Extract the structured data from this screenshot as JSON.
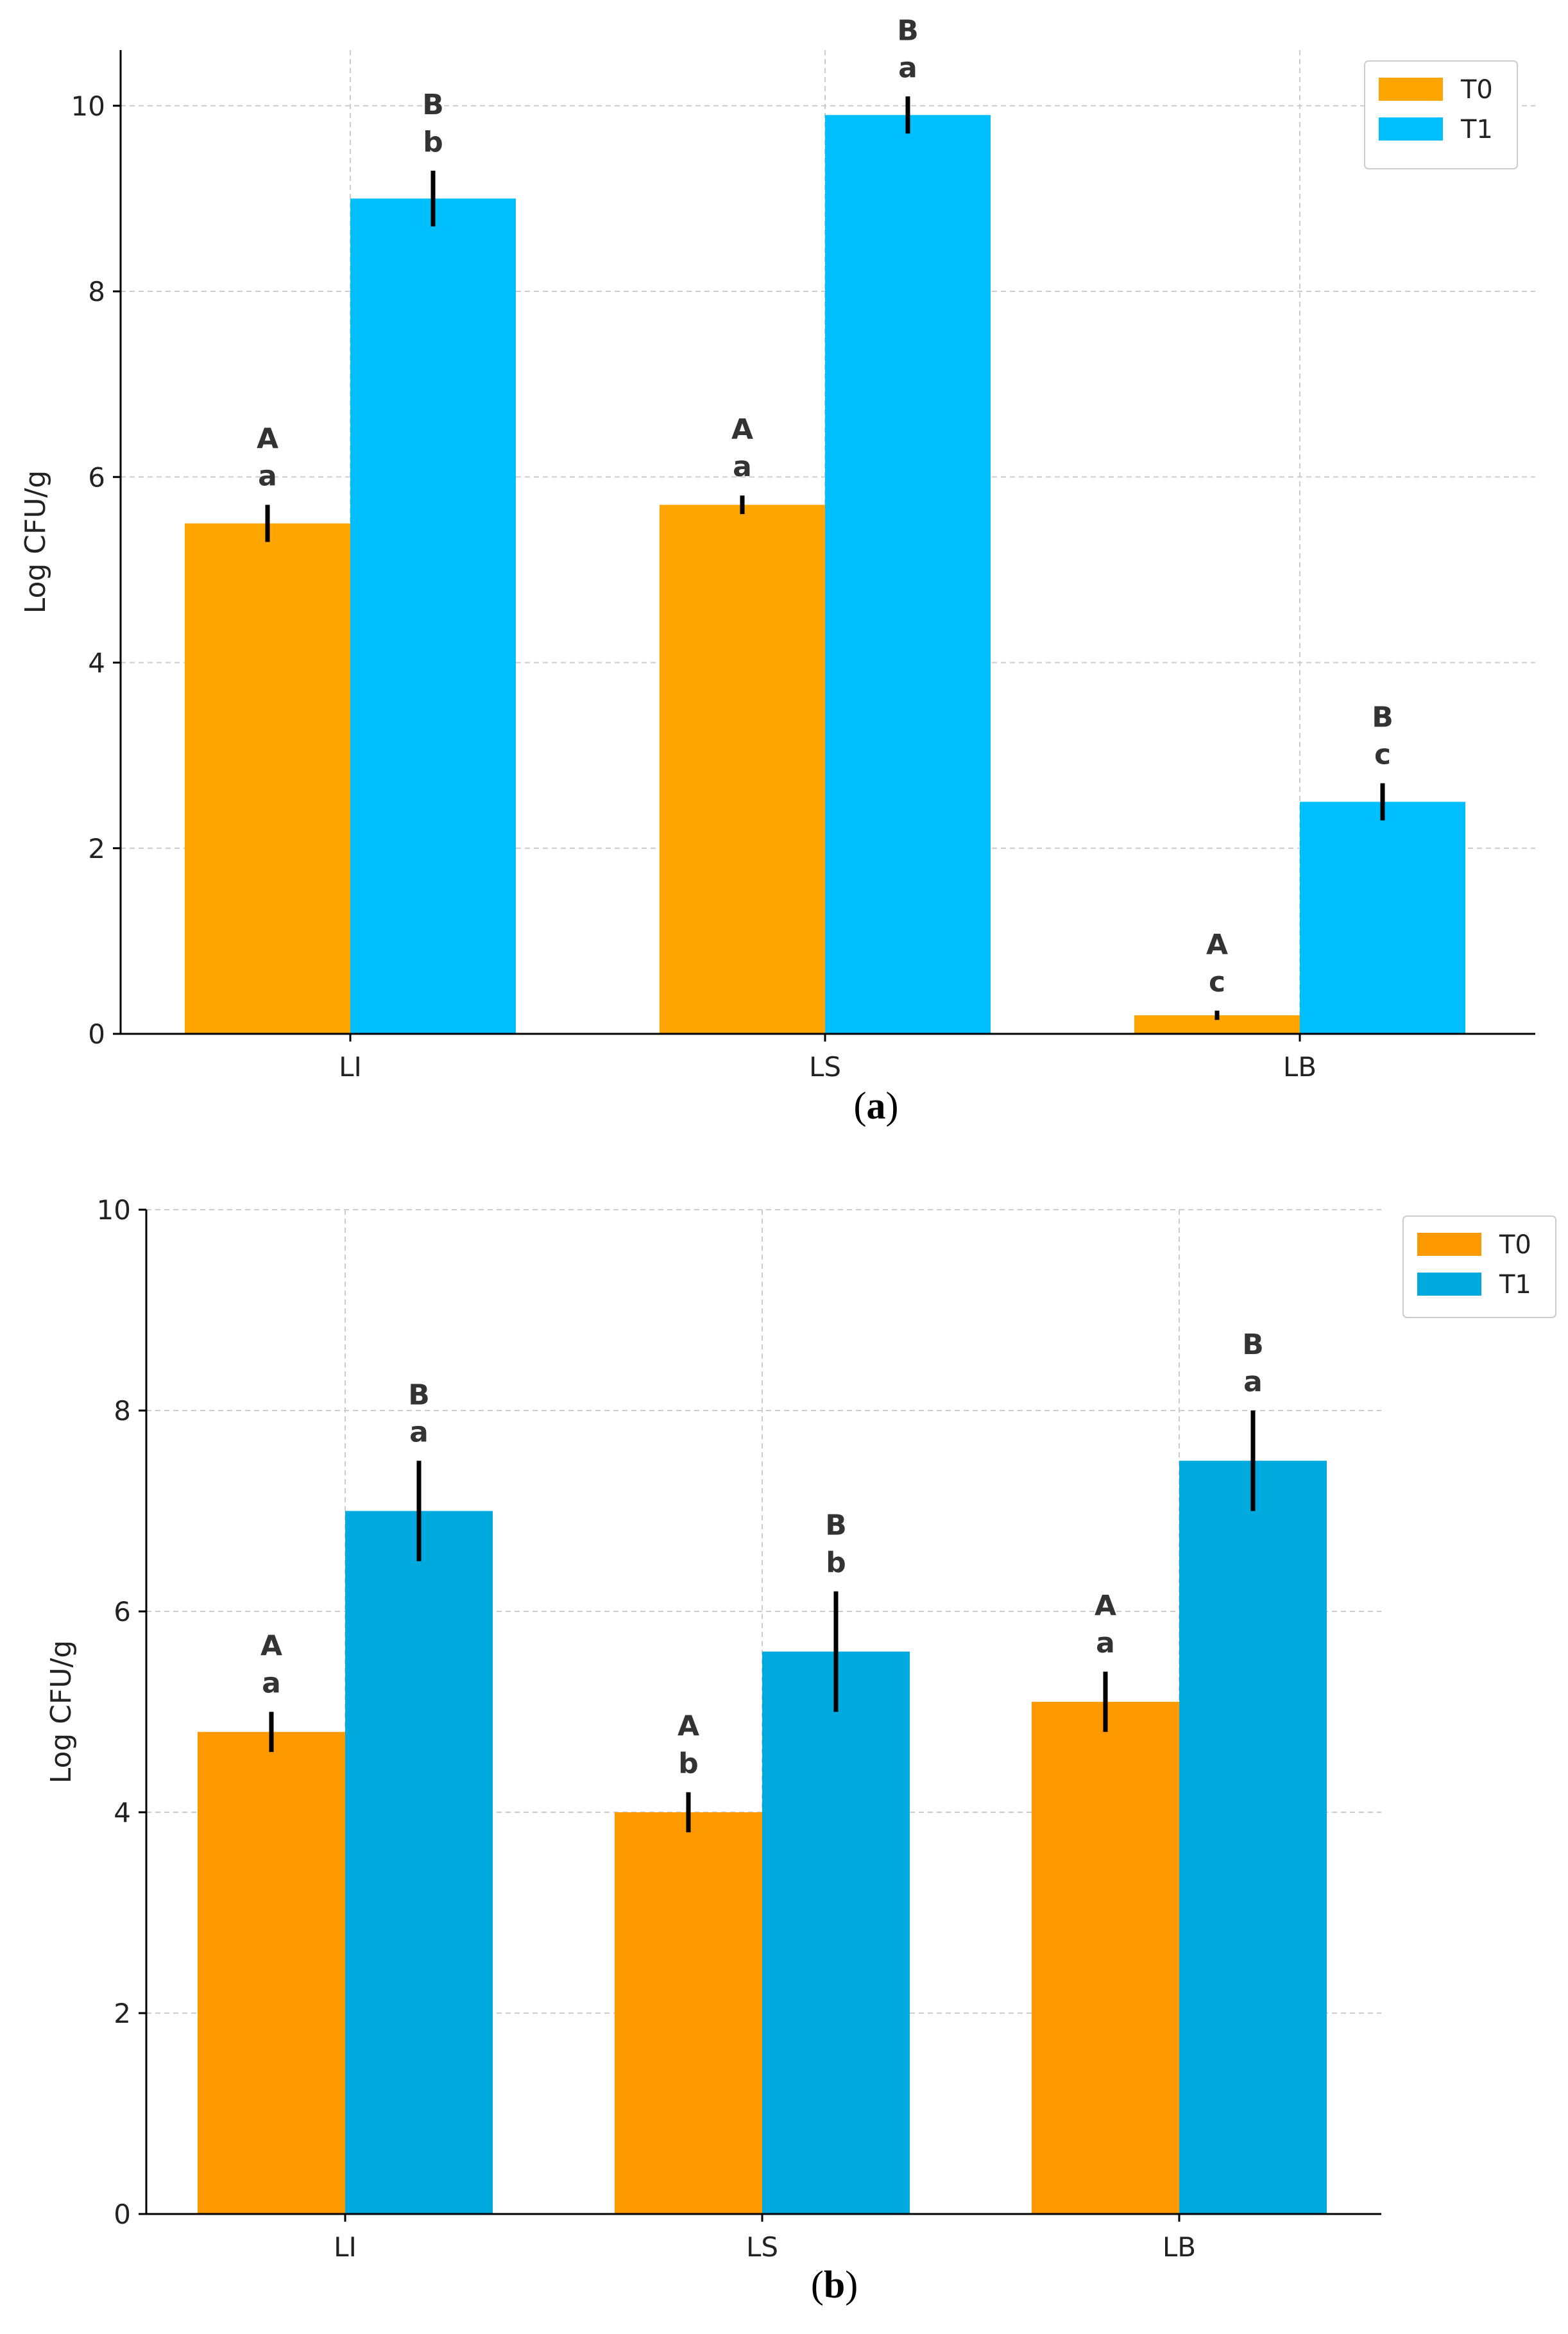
{
  "chart_data": [
    {
      "type": "bar",
      "panel": "a",
      "caption": {
        "open": "(",
        "letter": "a",
        "close": ")"
      },
      "categories": [
        "LI",
        "LS",
        "LB"
      ],
      "ylabel": "Log CFU/g",
      "ylim": [
        0,
        10.6
      ],
      "yticks": [
        0,
        2,
        4,
        6,
        8,
        10
      ],
      "grid": true,
      "legend_position": "top-right",
      "series": [
        {
          "name": "T0",
          "color": "#FFA500",
          "values": [
            5.5,
            5.7,
            0.2
          ],
          "errors": [
            0.2,
            0.1,
            0.05
          ],
          "labels_upper": [
            "A",
            "A",
            "A"
          ],
          "labels_lower": [
            "a",
            "a",
            "c"
          ]
        },
        {
          "name": "T1",
          "color": "#00BFFF",
          "values": [
            9.0,
            9.9,
            2.5
          ],
          "errors": [
            0.3,
            0.2,
            0.2
          ],
          "labels_upper": [
            "B",
            "B",
            "B"
          ],
          "labels_lower": [
            "b",
            "a",
            "c"
          ]
        }
      ]
    },
    {
      "type": "bar",
      "panel": "b",
      "caption": {
        "open": "(",
        "letter": "b",
        "close": ")"
      },
      "categories": [
        "LI",
        "LS",
        "LB"
      ],
      "ylabel": "Log CFU/g",
      "ylim": [
        0,
        10
      ],
      "yticks": [
        0,
        2,
        4,
        6,
        8,
        10
      ],
      "grid": true,
      "legend_position": "top-right",
      "series": [
        {
          "name": "T0",
          "color": "#FF9900",
          "values": [
            4.8,
            4.0,
            5.1
          ],
          "errors": [
            0.2,
            0.2,
            0.3
          ],
          "labels_upper": [
            "A",
            "A",
            "A"
          ],
          "labels_lower": [
            "a",
            "b",
            "a"
          ]
        },
        {
          "name": "T1",
          "color": "#00AADF",
          "values": [
            7.0,
            5.6,
            7.5
          ],
          "errors": [
            0.5,
            0.6,
            0.5
          ],
          "labels_upper": [
            "B",
            "B",
            "B"
          ],
          "labels_lower": [
            "a",
            "b",
            "a"
          ]
        }
      ]
    }
  ]
}
